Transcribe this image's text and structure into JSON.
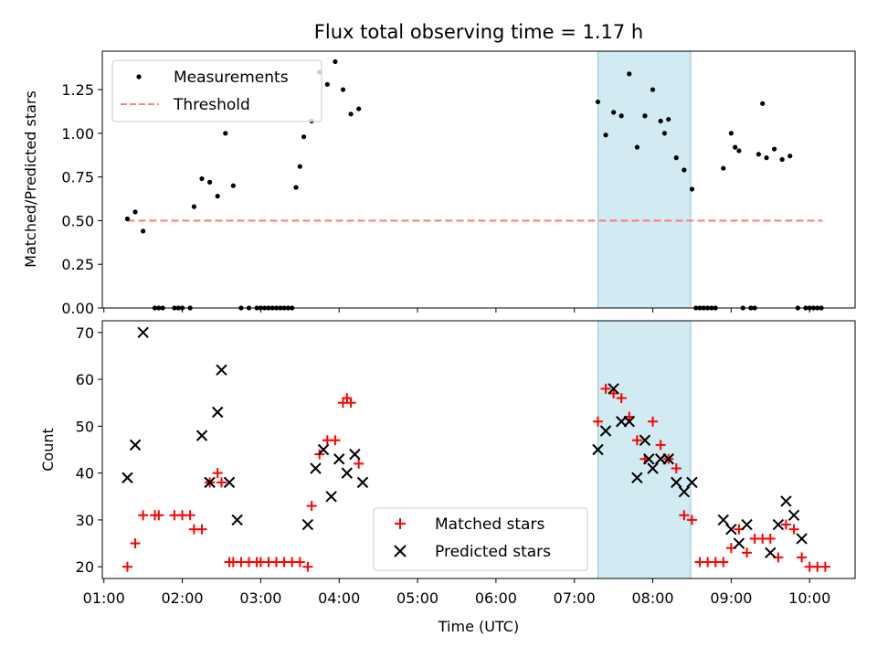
{
  "chart_data": [
    {
      "type": "scatter",
      "title": "Flux total observing time = 1.17 h",
      "ylabel": "Matched/Predicted stars",
      "ylim": [
        0,
        1.47
      ],
      "yticks": [
        "0.00",
        "0.25",
        "0.50",
        "0.75",
        "1.00",
        "1.25"
      ],
      "xlim_hours": [
        0.98,
        10.58
      ],
      "highlight_span": [
        "07:18",
        "08:29"
      ],
      "highlight_color": "#add8e6",
      "threshold": 0.5,
      "threshold_range": [
        "01:18",
        "10:10"
      ],
      "legend_position": "upper left",
      "series": [
        {
          "name": "Measurements",
          "marker": "dot",
          "color": "#000000",
          "x": [
            "01:18",
            "01:24",
            "01:30",
            "01:39",
            "01:42",
            "01:45",
            "01:54",
            "01:57",
            "02:00",
            "02:06",
            "02:09",
            "02:15",
            "02:21",
            "02:27",
            "02:33",
            "02:39",
            "02:45",
            "02:51",
            "02:57",
            "03:00",
            "03:03",
            "03:06",
            "03:09",
            "03:12",
            "03:15",
            "03:18",
            "03:21",
            "03:24",
            "03:27",
            "03:30",
            "03:33",
            "03:39",
            "03:45",
            "03:51",
            "03:57",
            "04:03",
            "04:09",
            "04:15",
            "07:18",
            "07:24",
            "07:30",
            "07:36",
            "07:42",
            "07:48",
            "07:54",
            "08:00",
            "08:06",
            "08:09",
            "08:12",
            "08:18",
            "08:24",
            "08:30",
            "08:33",
            "08:36",
            "08:39",
            "08:42",
            "08:45",
            "08:48",
            "08:54",
            "09:00",
            "09:03",
            "09:06",
            "09:09",
            "09:15",
            "09:18",
            "09:21",
            "09:24",
            "09:27",
            "09:33",
            "09:39",
            "09:45",
            "09:51",
            "09:57",
            "10:00",
            "10:03",
            "10:06",
            "10:09"
          ],
          "y": [
            0.51,
            0.55,
            0.44,
            0,
            0,
            0,
            0,
            0,
            0,
            0,
            0.58,
            0.74,
            0.72,
            0.64,
            1.0,
            0.7,
            0,
            0,
            0,
            0,
            0,
            0,
            0,
            0,
            0,
            0,
            0,
            0,
            0.69,
            0.81,
            0.98,
            1.07,
            1.35,
            1.28,
            1.41,
            1.25,
            1.11,
            1.14,
            1.18,
            0.99,
            1.12,
            1.1,
            1.34,
            0.92,
            1.1,
            1.25,
            1.07,
            1.0,
            1.08,
            0.86,
            0.79,
            0.68,
            0,
            0,
            0,
            0,
            0,
            0,
            0.8,
            1.0,
            0.92,
            0.9,
            0,
            0,
            0,
            0.88,
            1.17,
            0.86,
            0.91,
            0.85,
            0.87,
            0,
            0,
            0,
            0,
            0,
            0
          ]
        },
        {
          "name": "Threshold",
          "style": "dashed",
          "color": "#ff7f7f"
        }
      ]
    },
    {
      "type": "scatter",
      "xlabel": "Time (UTC)",
      "ylabel": "Count",
      "ylim": [
        17.5,
        72.5
      ],
      "yticks": [
        "20",
        "30",
        "40",
        "50",
        "60",
        "70"
      ],
      "xticks": [
        "01:00",
        "02:00",
        "03:00",
        "04:00",
        "05:00",
        "06:00",
        "07:00",
        "08:00",
        "09:00",
        "10:00"
      ],
      "xlim_hours": [
        0.98,
        10.58
      ],
      "highlight_span": [
        "07:18",
        "08:29"
      ],
      "highlight_color": "#add8e6",
      "legend_position": "lower center",
      "series": [
        {
          "name": "Matched stars",
          "marker": "plus",
          "color": "#ff0000",
          "x": [
            "01:18",
            "01:24",
            "01:30",
            "01:39",
            "01:42",
            "01:54",
            "02:00",
            "02:06",
            "02:09",
            "02:15",
            "02:21",
            "02:27",
            "02:30",
            "02:36",
            "02:39",
            "02:45",
            "02:51",
            "02:57",
            "03:00",
            "03:06",
            "03:12",
            "03:18",
            "03:24",
            "03:30",
            "03:36",
            "03:39",
            "03:45",
            "03:51",
            "03:57",
            "04:03",
            "04:06",
            "04:09",
            "04:15",
            "07:18",
            "07:24",
            "07:30",
            "07:36",
            "07:42",
            "07:48",
            "07:54",
            "08:00",
            "08:06",
            "08:12",
            "08:18",
            "08:24",
            "08:30",
            "08:36",
            "08:42",
            "08:48",
            "08:54",
            "09:00",
            "09:06",
            "09:12",
            "09:18",
            "09:24",
            "09:30",
            "09:36",
            "09:42",
            "09:48",
            "09:54",
            "10:00",
            "10:06",
            "10:12"
          ],
          "y": [
            20,
            25,
            31,
            31,
            31,
            31,
            31,
            31,
            28,
            28,
            38,
            40,
            38,
            21,
            21,
            21,
            21,
            21,
            21,
            21,
            21,
            21,
            21,
            21,
            20,
            33,
            44,
            47,
            47,
            55,
            56,
            55,
            42,
            51,
            58,
            57,
            56,
            52,
            47,
            43,
            51,
            46,
            43,
            41,
            31,
            30,
            21,
            21,
            21,
            21,
            24,
            28,
            23,
            26,
            26,
            26,
            22,
            29,
            28,
            22,
            20,
            20,
            20
          ]
        },
        {
          "name": "Predicted stars",
          "marker": "x",
          "color": "#000000",
          "x": [
            "01:18",
            "01:24",
            "01:30",
            "02:15",
            "02:21",
            "02:27",
            "02:30",
            "02:36",
            "02:42",
            "03:36",
            "03:42",
            "03:48",
            "03:54",
            "04:00",
            "04:06",
            "04:12",
            "04:18",
            "07:18",
            "07:24",
            "07:30",
            "07:36",
            "07:42",
            "07:48",
            "07:54",
            "07:57",
            "08:00",
            "08:06",
            "08:12",
            "08:18",
            "08:24",
            "08:30",
            "08:54",
            "09:00",
            "09:06",
            "09:12",
            "09:30",
            "09:36",
            "09:42",
            "09:48",
            "09:54"
          ],
          "y": [
            39,
            46,
            70,
            48,
            38,
            53,
            62,
            38,
            30,
            29,
            41,
            45,
            35,
            43,
            40,
            44,
            38,
            45,
            49,
            58,
            51,
            51,
            39,
            47,
            43,
            41,
            43,
            43,
            38,
            36,
            38,
            30,
            28,
            25,
            29,
            23,
            29,
            34,
            31,
            26
          ]
        }
      ]
    }
  ]
}
